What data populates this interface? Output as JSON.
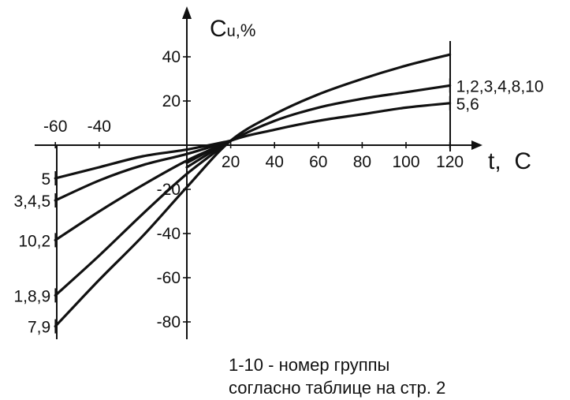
{
  "chart_data": {
    "type": "line",
    "title": "",
    "xlabel": "t,  C",
    "ylabel": "Cu,%",
    "ylabel_main": "C",
    "ylabel_sub": "u",
    "ylabel_suffix": ",%",
    "xlim": [
      -60,
      120
    ],
    "ylim": [
      -80,
      40
    ],
    "x_ticks_positive": [
      20,
      40,
      60,
      80,
      100,
      120
    ],
    "x_ticks_negative": [
      -60,
      -40
    ],
    "y_ticks": [
      40,
      20,
      -20,
      -40,
      -60,
      -80
    ],
    "grid": false,
    "series": [
      {
        "name": "7,9",
        "x": [
          -60,
          -40,
          -20,
          0,
          20,
          40,
          60,
          80,
          100,
          120
        ],
        "y": [
          -82,
          -61,
          -41,
          -19,
          2,
          14,
          23,
          30,
          36,
          41
        ]
      },
      {
        "name": "1,2,3,4,8,10",
        "x": [
          0,
          20,
          40,
          60,
          80,
          100,
          120
        ],
        "y": [
          -10,
          2,
          11,
          17,
          21,
          24,
          27
        ]
      },
      {
        "name": "5,6",
        "x": [
          0,
          20,
          40,
          60,
          80,
          100,
          120
        ],
        "y": [
          -8,
          2,
          7,
          11,
          14,
          17,
          19
        ]
      },
      {
        "name": "1,8,9",
        "x": [
          -60,
          -40,
          -20,
          0,
          20
        ],
        "y": [
          -68,
          -50,
          -31,
          -13,
          2
        ]
      },
      {
        "name": "10,2",
        "x": [
          -60,
          -40,
          -20,
          0,
          20
        ],
        "y": [
          -43,
          -30,
          -18,
          -7,
          2
        ]
      },
      {
        "name": "3,4,5",
        "x": [
          -60,
          -40,
          -20,
          0,
          20
        ],
        "y": [
          -25,
          -16,
          -9,
          -4,
          2
        ]
      },
      {
        "name": "5",
        "x": [
          -60,
          -40,
          -20,
          0,
          20
        ],
        "y": [
          -15,
          -10,
          -5,
          -2,
          2
        ]
      }
    ],
    "annotation_lines": [
      "1-10 - номер группы",
      "согласно таблице на стр. 2"
    ]
  }
}
